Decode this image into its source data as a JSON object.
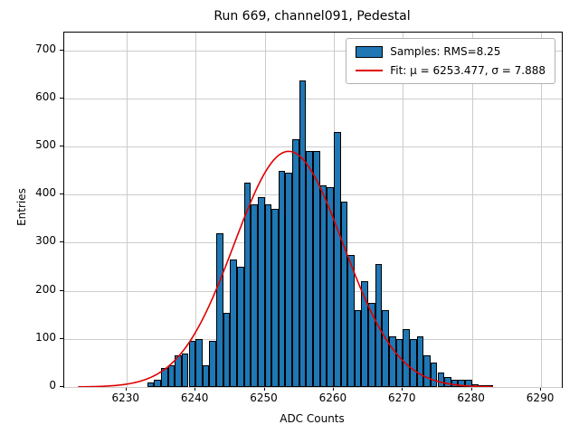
{
  "chart_data": {
    "type": "bar",
    "title": "Run 669, channel091, Pedestal",
    "xlabel": "ADC Counts",
    "ylabel": "Entries",
    "xlim": [
      6221,
      6293
    ],
    "ylim": [
      0,
      737
    ],
    "x_ticks": [
      6230,
      6240,
      6250,
      6260,
      6270,
      6280,
      6290
    ],
    "y_ticks": [
      0,
      100,
      200,
      300,
      400,
      500,
      600,
      700
    ],
    "grid": true,
    "legend_position": "upper right",
    "bins": {
      "start": 6233,
      "bin_width": 1,
      "counts": [
        10,
        15,
        40,
        45,
        65,
        70,
        95,
        100,
        45,
        95,
        320,
        155,
        265,
        250,
        425,
        380,
        395,
        380,
        370,
        450,
        445,
        515,
        638,
        490,
        490,
        420,
        415,
        530,
        385,
        275,
        160,
        220,
        175,
        255,
        160,
        105,
        100,
        120,
        100,
        105,
        65,
        50,
        30,
        20,
        15,
        15,
        15,
        5,
        3,
        3
      ]
    },
    "fit": {
      "mu": 6253.477,
      "sigma": 7.888,
      "amplitude": 490,
      "range": [
        6223,
        6283
      ]
    },
    "legend": [
      {
        "type": "patch",
        "label": "Samples: RMS=8.25"
      },
      {
        "type": "line",
        "label": "Fit: μ = 6253.477, σ = 7.888"
      }
    ],
    "colors": {
      "bar_fill": "#1f77b4",
      "bar_edge": "#000000",
      "fit_line": "#e00000",
      "grid": "#cccccc",
      "axes": "#000000"
    }
  }
}
